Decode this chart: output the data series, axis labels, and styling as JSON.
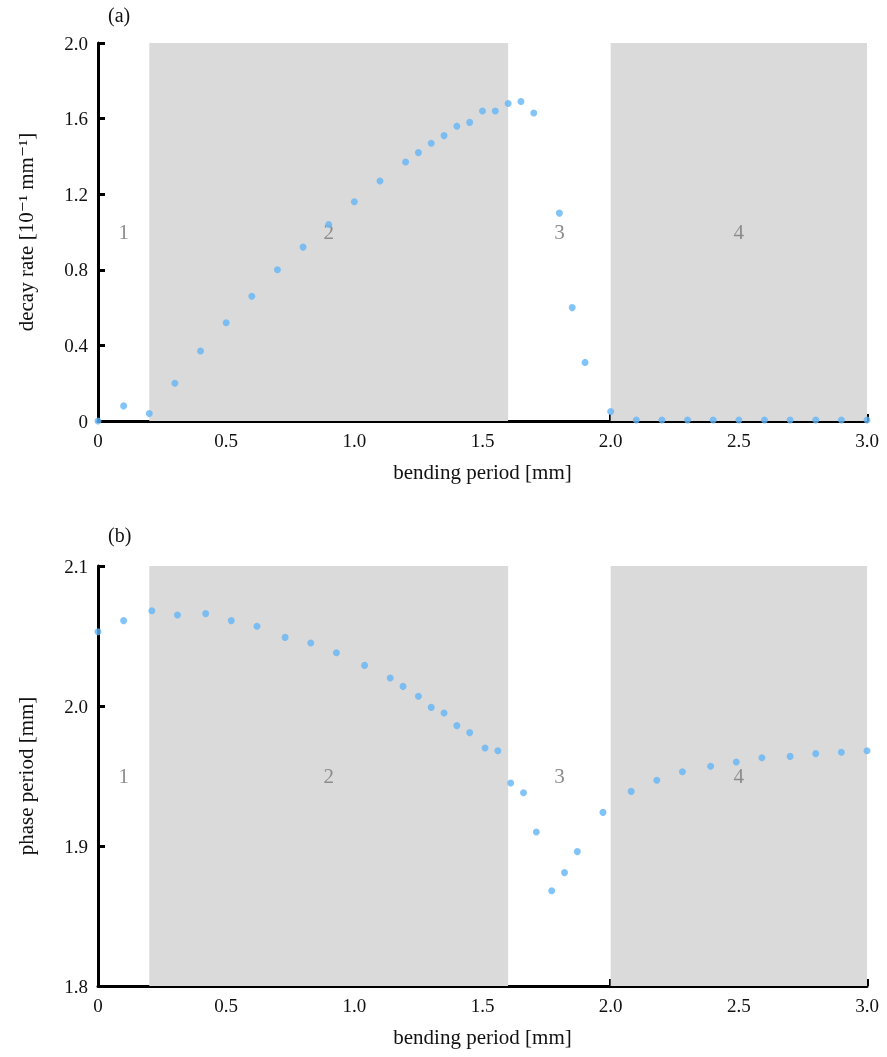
{
  "chart_data": [
    {
      "type": "scatter",
      "title": "(a)",
      "xlabel": "bending period [mm]",
      "ylabel": "decay rate [10⁻¹ mm⁻¹]",
      "marker": "circle",
      "grid": false,
      "xlim": [
        0,
        3
      ],
      "xticks": [
        0,
        0.5,
        {
          "value": 1,
          "label": "1.0"
        },
        1.5,
        {
          "value": 2,
          "label": "2.0"
        },
        2.5,
        {
          "value": 3,
          "label": "3.0"
        }
      ],
      "ylim": [
        0,
        2
      ],
      "yticks": [
        0,
        0.4,
        0.8,
        1.2,
        1.6,
        {
          "value": 2,
          "label": "2.0"
        }
      ],
      "x": [
        0,
        0.1,
        0.2,
        0.3,
        0.4,
        0.5,
        0.6,
        0.7,
        0.8,
        0.9,
        1.0,
        1.1,
        1.2,
        1.25,
        1.3,
        1.35,
        1.4,
        1.45,
        1.5,
        1.55,
        1.6,
        1.65,
        1.7,
        1.8,
        1.85,
        1.9,
        2.0,
        2.1,
        2.2,
        2.3,
        2.4,
        2.5,
        2.6,
        2.7,
        2.8,
        2.9,
        3.0
      ],
      "series": [
        {
          "color": "#64b5f6",
          "values": [
            0.0,
            0.08,
            0.04,
            0.2,
            0.37,
            0.52,
            0.66,
            0.8,
            0.92,
            1.04,
            1.16,
            1.27,
            1.37,
            1.42,
            1.47,
            1.51,
            1.56,
            1.58,
            1.64,
            1.64,
            1.68,
            1.69,
            1.63,
            1.1,
            0.6,
            0.31,
            0.05,
            0.005,
            0.005,
            0.005,
            0.005,
            0.005,
            0.005,
            0.005,
            0.005,
            0.005,
            0.005
          ]
        }
      ],
      "bands": [
        {
          "axis": "x",
          "from": 0.2,
          "to": 1.6,
          "label": "2",
          "color": "#dadada"
        },
        {
          "axis": "x",
          "from": 2.0,
          "to": 3.0,
          "label": "4",
          "color": "#dadada"
        }
      ],
      "annotations": [
        "1",
        "3"
      ]
    },
    {
      "type": "scatter",
      "title": "(b)",
      "xlabel": "bending period [mm]",
      "ylabel": "phase period [mm]",
      "marker": "circle",
      "grid": false,
      "xlim": [
        0,
        3
      ],
      "xticks": [
        0,
        0.5,
        {
          "value": 1,
          "label": "1.0"
        },
        1.5,
        {
          "value": 2,
          "label": "2.0"
        },
        2.5,
        {
          "value": 3,
          "label": "3.0"
        }
      ],
      "ylim": [
        1.8,
        2.1
      ],
      "yticks": [
        1.8,
        1.9,
        {
          "value": 2,
          "label": "2.0"
        },
        2.1
      ],
      "x": [
        0,
        0.1,
        0.21,
        0.31,
        0.42,
        0.52,
        0.62,
        0.73,
        0.83,
        0.93,
        1.04,
        1.14,
        1.19,
        1.25,
        1.3,
        1.35,
        1.4,
        1.45,
        1.51,
        1.56,
        1.61,
        1.66,
        1.71,
        1.77,
        1.82,
        1.87,
        1.97,
        2.08,
        2.18,
        2.28,
        2.39,
        2.49,
        2.59,
        2.7,
        2.8,
        2.9,
        3.0
      ],
      "series": [
        {
          "color": "#64b5f6",
          "values": [
            2.053,
            2.061,
            2.068,
            2.065,
            2.066,
            2.061,
            2.057,
            2.049,
            2.045,
            2.038,
            2.029,
            2.02,
            2.014,
            2.007,
            1.999,
            1.995,
            1.986,
            1.981,
            1.97,
            1.968,
            1.945,
            1.938,
            1.91,
            1.868,
            1.881,
            1.896,
            1.924,
            1.939,
            1.947,
            1.953,
            1.957,
            1.96,
            1.963,
            1.964,
            1.966,
            1.967,
            1.968
          ]
        }
      ],
      "bands": [
        {
          "axis": "x",
          "from": 0.2,
          "to": 1.6,
          "label": "2",
          "color": "#dadada"
        },
        {
          "axis": "x",
          "from": 2.0,
          "to": 3.0,
          "label": "4",
          "color": "#dadada"
        }
      ],
      "annotations": [
        "1",
        "3"
      ]
    }
  ]
}
